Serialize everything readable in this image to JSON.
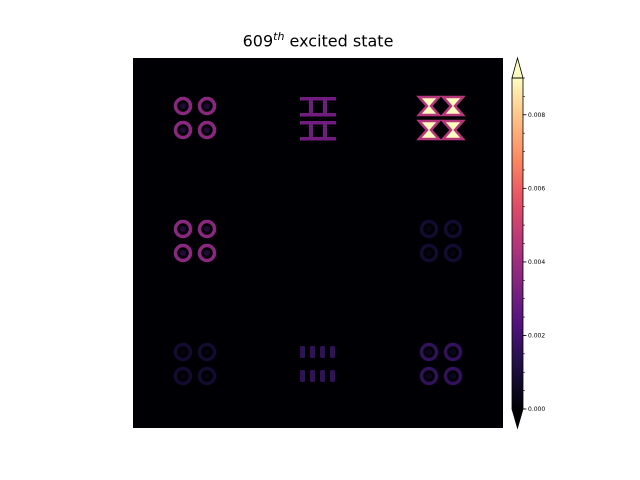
{
  "chart_data": {
    "type": "heatmap",
    "title": {
      "number": "609",
      "superscript": "th",
      "suffix": " excited state"
    },
    "colormap": "magma",
    "colorbar": {
      "min": 0.0,
      "max": 0.009,
      "extend": "both",
      "ticks": [
        0.0,
        0.002,
        0.004,
        0.006,
        0.008
      ],
      "tick_labels": [
        "0.000",
        "0.002",
        "0.004",
        "0.006",
        "0.008"
      ]
    },
    "axes_visible": false,
    "blocks": [
      {
        "row": 1,
        "col": 1,
        "pattern": "rings",
        "peak": 0.0036
      },
      {
        "row": 1,
        "col": 2,
        "pattern": "bars",
        "peak": 0.003
      },
      {
        "row": 1,
        "col": 3,
        "pattern": "bowtie",
        "peak": 0.009
      },
      {
        "row": 2,
        "col": 1,
        "pattern": "rings",
        "peak": 0.0036
      },
      {
        "row": 2,
        "col": 2,
        "pattern": "none",
        "peak": 0.0
      },
      {
        "row": 2,
        "col": 3,
        "pattern": "rings",
        "peak": 0.0008
      },
      {
        "row": 3,
        "col": 1,
        "pattern": "rings",
        "peak": 0.0008
      },
      {
        "row": 3,
        "col": 2,
        "pattern": "segments",
        "peak": 0.0016
      },
      {
        "row": 3,
        "col": 3,
        "pattern": "rings",
        "peak": 0.0016
      }
    ]
  }
}
